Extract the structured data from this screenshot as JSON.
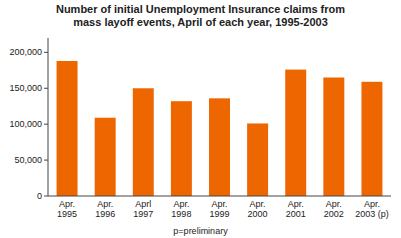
{
  "chart_data": {
    "type": "bar",
    "title": "Number of initial Unemployment Insurance claims from\nmass layoff events, April of each year, 1995-2003",
    "categories": [
      "Apr.\n1995",
      "Apr.\n1996",
      "Aprl\n1997",
      "Apr.\n1998",
      "Apr.\n1999",
      "Apr.\n2000",
      "Apr.\n2001",
      "Apr.\n2002",
      "Apr.\n2003 (p)"
    ],
    "values": [
      188000,
      109000,
      150000,
      132000,
      136000,
      101000,
      176000,
      165000,
      159000
    ],
    "color": "#EE6600",
    "ylim": [
      0,
      220000
    ],
    "yticks": [
      0,
      {
        "value": 50000,
        "label": "50,000"
      },
      {
        "value": 100000,
        "label": "100,000"
      },
      {
        "value": 150000,
        "label": "150,000"
      },
      {
        "value": 200000,
        "label": "200,000"
      }
    ],
    "grid": false,
    "annotations": [
      "p=preliminary"
    ]
  }
}
